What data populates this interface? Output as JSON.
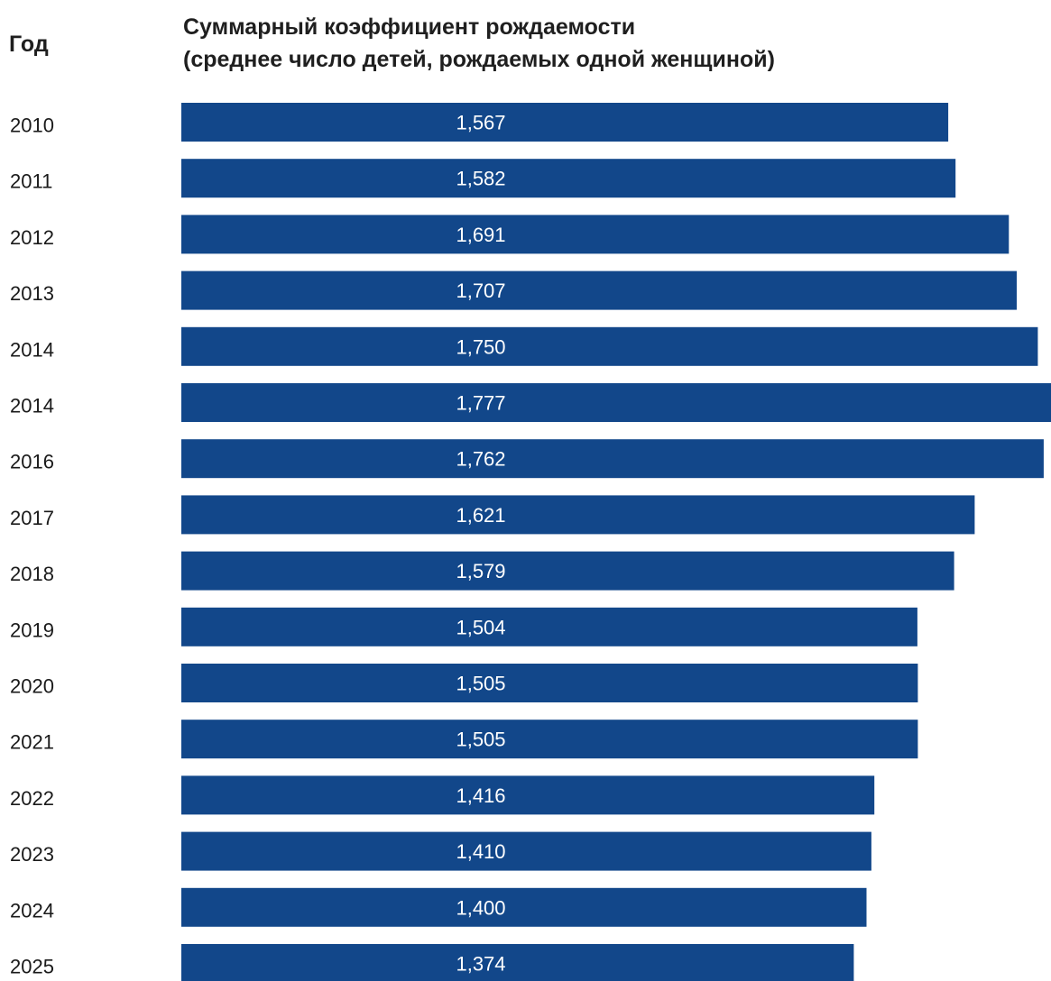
{
  "header": {
    "year_column": "Год",
    "title_line1": "Суммарный коэффициент рождаемости",
    "title_line2": "(среднее число детей, рождаемых одной женщиной)"
  },
  "colors": {
    "bar": "#12478a",
    "bar_text": "#ffffff",
    "text": "#1a1a1a"
  },
  "chart_data": {
    "type": "bar",
    "orientation": "horizontal",
    "title": "Суммарный коэффициент рождаемости (среднее число детей, рождаемых одной женщиной)",
    "category_header": "Год",
    "categories": [
      "2010",
      "2011",
      "2012",
      "2013",
      "2014",
      "2014",
      "2016",
      "2017",
      "2018",
      "2019",
      "2020",
      "2021",
      "2022",
      "2023",
      "2024",
      "2025"
    ],
    "values": [
      1.567,
      1.582,
      1.691,
      1.707,
      1.75,
      1.777,
      1.762,
      1.621,
      1.579,
      1.504,
      1.505,
      1.505,
      1.416,
      1.41,
      1.4,
      1.374
    ],
    "value_labels": [
      "1,567",
      "1,582",
      "1,691",
      "1,707",
      "1,750",
      "1,777",
      "1,762",
      "1,621",
      "1,579",
      "1,504",
      "1,505",
      "1,505",
      "1,416",
      "1,410",
      "1,400",
      "1,374"
    ],
    "grid": false,
    "legend": "none"
  }
}
